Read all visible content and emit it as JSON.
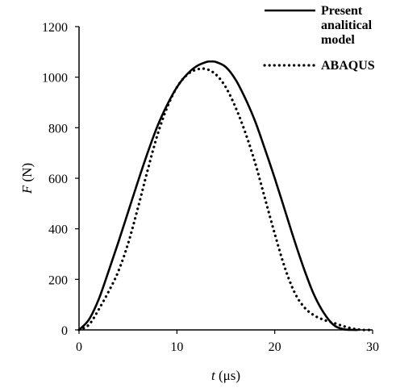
{
  "chart_data": {
    "type": "line",
    "title": "",
    "xlabel": {
      "var": "t",
      "unit": " (μs)"
    },
    "ylabel": {
      "var": "F",
      "unit": " (N)"
    },
    "xlim": [
      0,
      30
    ],
    "ylim": [
      0,
      1200
    ],
    "x_ticks": [
      0,
      10,
      20,
      30
    ],
    "y_ticks": [
      0,
      200,
      400,
      600,
      800,
      1000,
      1200
    ],
    "grid": false,
    "legend_position": "top-right",
    "series": [
      {
        "name": "Present analitical model",
        "name_lines": [
          "Present",
          "analitical",
          "model"
        ],
        "style": "solid",
        "color": "#000000",
        "x": [
          0,
          1,
          2,
          3,
          4,
          5,
          6,
          7,
          8,
          9,
          10,
          11,
          12,
          13,
          13.5,
          14,
          15,
          16,
          17,
          18,
          19,
          20,
          21,
          22,
          23,
          24,
          25,
          26,
          27,
          28,
          28.5
        ],
        "y": [
          0,
          40,
          120,
          230,
          345,
          465,
          585,
          700,
          805,
          890,
          960,
          1010,
          1043,
          1060,
          1062,
          1060,
          1040,
          990,
          915,
          825,
          715,
          600,
          478,
          355,
          240,
          140,
          68,
          20,
          3,
          0,
          0
        ]
      },
      {
        "name": "ABAQUS",
        "name_lines": [
          "ABAQUS"
        ],
        "style": "dotted",
        "color": "#000000",
        "x": [
          0,
          1,
          2,
          3,
          4,
          5,
          6,
          7,
          8,
          9,
          10,
          11,
          12,
          13,
          14,
          15,
          16,
          17,
          18,
          19,
          20,
          21,
          22,
          23,
          24,
          25,
          26,
          27,
          28,
          29,
          30
        ],
        "y": [
          0,
          20,
          80,
          150,
          230,
          340,
          480,
          630,
          770,
          880,
          960,
          1008,
          1030,
          1032,
          1010,
          960,
          880,
          780,
          660,
          520,
          380,
          250,
          150,
          90,
          58,
          40,
          28,
          15,
          5,
          0,
          0
        ]
      }
    ]
  }
}
